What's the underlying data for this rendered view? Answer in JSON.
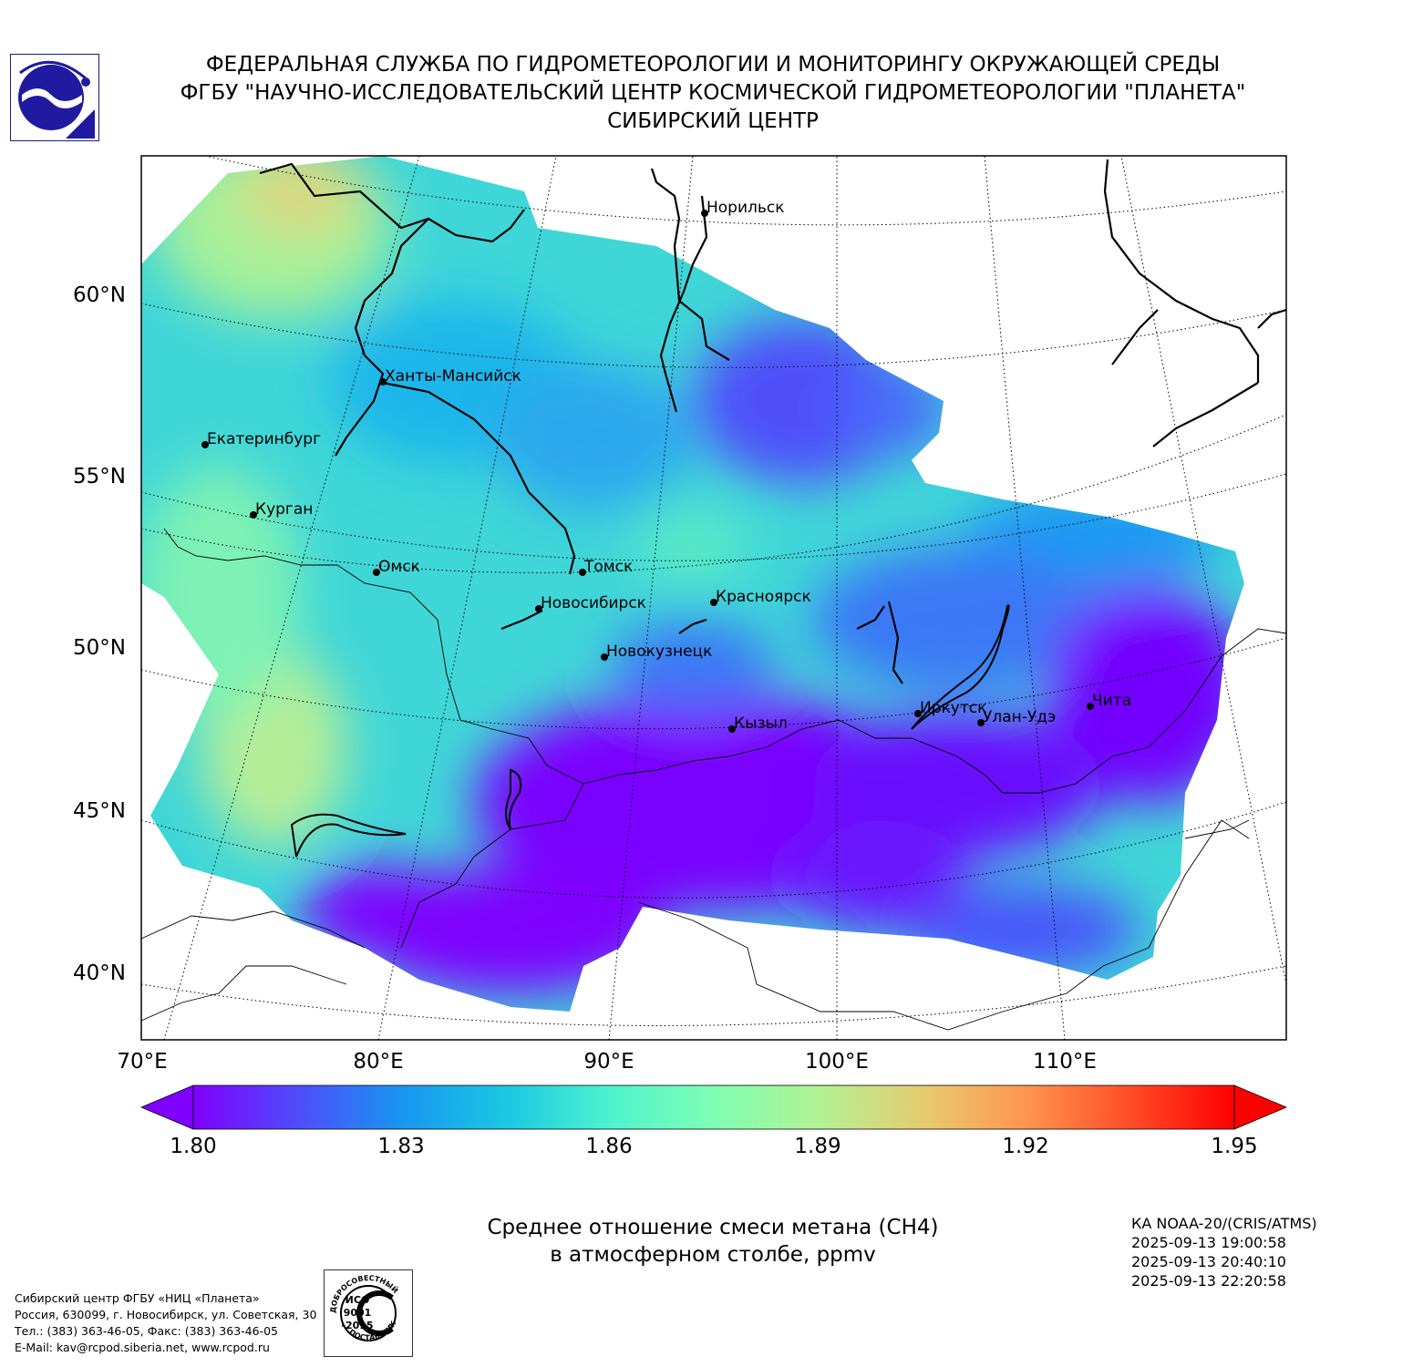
{
  "header": {
    "line1": "ФЕДЕРАЛЬНАЯ СЛУЖБА ПО ГИДРОМЕТЕОРОЛОГИИ И МОНИТОРИНГУ ОКРУЖАЮЩЕЙ СРЕДЫ",
    "line2": "ФГБУ \"НАУЧНО-ИССЛЕДОВАТЕЛЬСКИЙ ЦЕНТР КОСМИЧЕСКОЙ ГИДРОМЕТЕОРОЛОГИИ \"ПЛАНЕТА\"",
    "line3": "СИБИРСКИЙ ЦЕНТР"
  },
  "map": {
    "lat_labels": [
      "60°N",
      "55°N",
      "50°N",
      "45°N",
      "40°N"
    ],
    "lon_labels": [
      "70°E",
      "80°E",
      "90°E",
      "100°E",
      "110°E"
    ],
    "cities": [
      {
        "name": "Норильск"
      },
      {
        "name": "Ханты-Мансийск"
      },
      {
        "name": "Екатеринбург"
      },
      {
        "name": "Курган"
      },
      {
        "name": "Омск"
      },
      {
        "name": "Томск"
      },
      {
        "name": "Новосибирск"
      },
      {
        "name": "Красноярск"
      },
      {
        "name": "Новокузнецк"
      },
      {
        "name": "Кызыл"
      },
      {
        "name": "Иркутск"
      },
      {
        "name": "Улан-Удэ"
      },
      {
        "name": "Чита"
      }
    ]
  },
  "colorbar": {
    "ticks": [
      "1.80",
      "1.83",
      "1.86",
      "1.89",
      "1.92",
      "1.95"
    ],
    "colors": [
      "#7f00ff",
      "#4f4cfb",
      "#1995f2",
      "#19c8e3",
      "#4df3ce",
      "#7ffeb3",
      "#b2f295",
      "#e6cc71",
      "#ff954e",
      "#ff4c27",
      "#ff0000"
    ]
  },
  "caption": {
    "line1": "Среднее отношение смеси метана (CH4)",
    "line2": "в атмосферном столбе, ppmv"
  },
  "satellite": {
    "name": "КА NOAA-20/(CRIS/ATMS)",
    "time1": "2025-09-13 19:00:58",
    "time2": "2025-09-13 20:40:10",
    "time3": "2025-09-13 22:20:58"
  },
  "contacts": {
    "line1": "Сибирский центр ФГБУ «НИЦ «Планета»",
    "line2": "Россия, 630099, г. Новосибирск, ул. Советская, 30",
    "line3": "Тел.: (383) 363-46-05, Факс: (383) 363-46-05",
    "line4": "E-Mail: kav@rcpod.siberia.net, www.rcpod.ru"
  },
  "iso_badge": {
    "top": "ДОБРОСОВЕСТНЫЙ",
    "iso": "ИСО",
    "num": "9001",
    "year": "-2015",
    "bottom": "ПОСТАВЩИК"
  }
}
